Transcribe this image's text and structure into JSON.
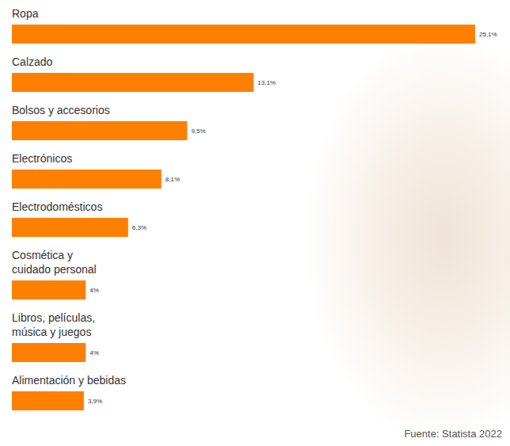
{
  "chart_data": {
    "type": "bar",
    "orientation": "horizontal",
    "categories": [
      "Ropa",
      "Calzado",
      "Bolsos y accesorios",
      "Electrónicos",
      "Electrodomésticos",
      "Cosmética y cuidado personal",
      "Libros, películas, música y juegos",
      "Alimentación y bebidas"
    ],
    "values": [
      25.1,
      13.1,
      9.5,
      8.1,
      6.3,
      4,
      4,
      3.9
    ],
    "value_labels": [
      "25,1%",
      "13,1%",
      "9,5%",
      "8,1%",
      "6,3%",
      "4%",
      "4%",
      "3,9%"
    ],
    "color": "#ff7f00",
    "xlim": [
      0,
      25.1
    ],
    "tick_labels": false,
    "data_labels": true,
    "source": "Fuente: Statista 2022"
  }
}
